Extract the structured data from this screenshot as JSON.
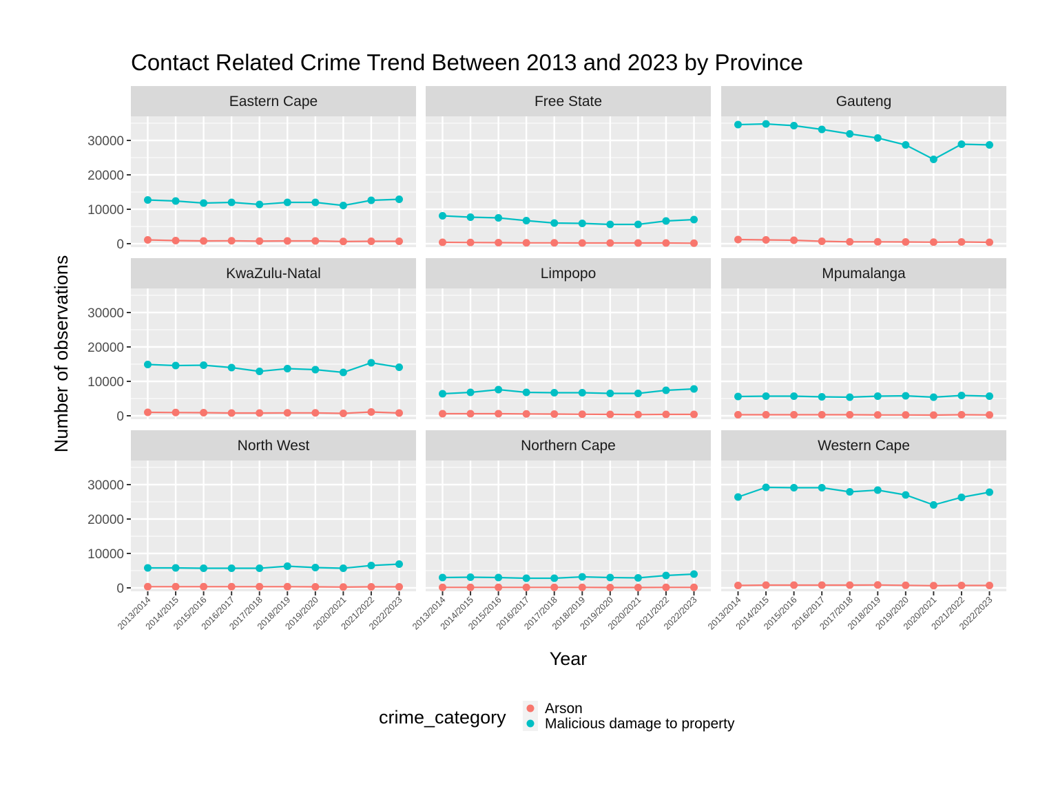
{
  "chart_data": {
    "type": "line",
    "title": "Contact Related Crime Trend Between 2013 and 2023 by Province",
    "xlabel": "Year",
    "ylabel": "Number of observations",
    "ylim": [
      -1000,
      37000
    ],
    "yticks": [
      0,
      10000,
      20000,
      30000
    ],
    "ytick_labels": [
      "0",
      "10000",
      "20000",
      "30000"
    ],
    "categories": [
      "2013/2014",
      "2014/2015",
      "2015/2016",
      "2016/2017",
      "2017/2018",
      "2018/2019",
      "2019/2020",
      "2020/2021",
      "2021/2022",
      "2022/2023"
    ],
    "facet_layout": {
      "cols": 3,
      "rows": 3
    },
    "grid": true,
    "legend": {
      "title": "crime_category",
      "position": "bottom",
      "entries": [
        {
          "name": "Arson",
          "color": "#F8766D"
        },
        {
          "name": "Malicious damage to property",
          "color": "#00BFC4"
        }
      ]
    },
    "facets": [
      {
        "name": "Eastern Cape",
        "series": [
          {
            "name": "Arson",
            "values": [
              1100,
              900,
              800,
              850,
              750,
              800,
              800,
              650,
              700,
              700
            ]
          },
          {
            "name": "Malicious damage to property",
            "values": [
              12700,
              12400,
              11800,
              12000,
              11400,
              12000,
              12000,
              11100,
              12600,
              12900
            ]
          }
        ]
      },
      {
        "name": "Free State",
        "series": [
          {
            "name": "Arson",
            "values": [
              400,
              350,
              300,
              250,
              250,
              200,
              200,
              200,
              200,
              150
            ]
          },
          {
            "name": "Malicious damage to property",
            "values": [
              8100,
              7700,
              7500,
              6700,
              6000,
              5900,
              5600,
              5600,
              6600,
              7000
            ]
          }
        ]
      },
      {
        "name": "Gauteng",
        "series": [
          {
            "name": "Arson",
            "values": [
              1200,
              1100,
              1000,
              700,
              550,
              550,
              500,
              450,
              500,
              400
            ]
          },
          {
            "name": "Malicious damage to property",
            "values": [
              34600,
              34800,
              34300,
              33200,
              31900,
              30700,
              28700,
              24500,
              28900,
              28700
            ]
          }
        ]
      },
      {
        "name": "KwaZulu-Natal",
        "series": [
          {
            "name": "Arson",
            "values": [
              1000,
              950,
              900,
              800,
              800,
              850,
              850,
              700,
              1100,
              800
            ]
          },
          {
            "name": "Malicious damage to property",
            "values": [
              14900,
              14600,
              14700,
              14000,
              12900,
              13700,
              13400,
              12600,
              15400,
              14100
            ]
          }
        ]
      },
      {
        "name": "Limpopo",
        "series": [
          {
            "name": "Arson",
            "values": [
              600,
              600,
              600,
              550,
              500,
              450,
              400,
              350,
              400,
              400
            ]
          },
          {
            "name": "Malicious damage to property",
            "values": [
              6400,
              6800,
              7600,
              6800,
              6700,
              6700,
              6500,
              6500,
              7400,
              7800
            ]
          }
        ]
      },
      {
        "name": "Mpumalanga",
        "series": [
          {
            "name": "Arson",
            "values": [
              300,
              300,
              300,
              300,
              300,
              250,
              250,
              200,
              300,
              250
            ]
          },
          {
            "name": "Malicious damage to property",
            "values": [
              5600,
              5700,
              5700,
              5500,
              5400,
              5700,
              5800,
              5400,
              5900,
              5700
            ]
          }
        ]
      },
      {
        "name": "North West",
        "series": [
          {
            "name": "Arson",
            "values": [
              350,
              350,
              350,
              350,
              350,
              350,
              300,
              250,
              300,
              300
            ]
          },
          {
            "name": "Malicious damage to property",
            "values": [
              5800,
              5800,
              5700,
              5700,
              5700,
              6300,
              5900,
              5700,
              6500,
              6900
            ]
          }
        ]
      },
      {
        "name": "Northern Cape",
        "series": [
          {
            "name": "Arson",
            "values": [
              150,
              150,
              150,
              150,
              150,
              150,
              100,
              100,
              150,
              150
            ]
          },
          {
            "name": "Malicious damage to property",
            "values": [
              3000,
              3100,
              3000,
              2800,
              2800,
              3200,
              3000,
              2900,
              3600,
              4000
            ]
          }
        ]
      },
      {
        "name": "Western Cape",
        "series": [
          {
            "name": "Arson",
            "values": [
              700,
              800,
              800,
              800,
              800,
              850,
              750,
              650,
              700,
              700
            ]
          },
          {
            "name": "Malicious damage to property",
            "values": [
              26400,
              29200,
              29100,
              29100,
              27900,
              28400,
              27000,
              24100,
              26300,
              27800
            ]
          }
        ]
      }
    ]
  }
}
